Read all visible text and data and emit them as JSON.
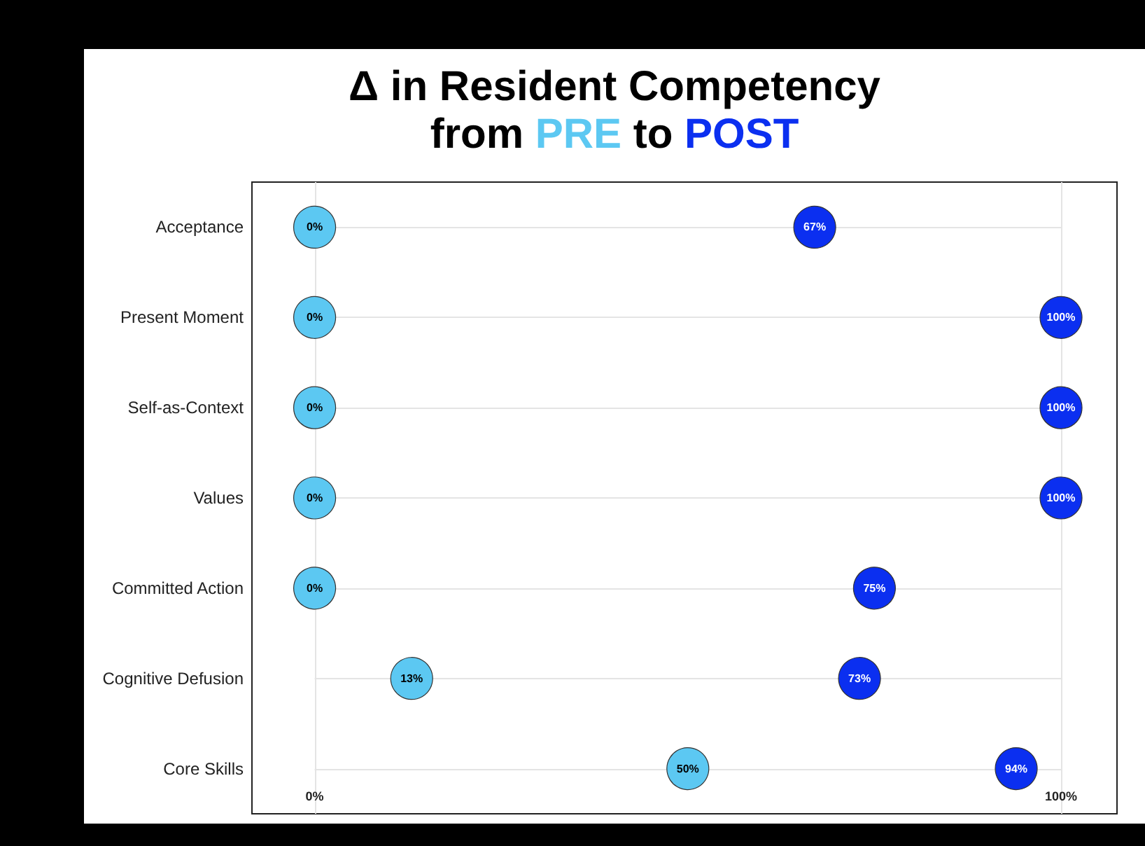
{
  "chart_data": {
    "type": "scatter",
    "orientation": "horizontal",
    "title": "Δ in Resident Competency\nfrom PRE to POST",
    "categories": [
      "Acceptance",
      "Present Moment",
      "Self-as-Context",
      "Values",
      "Committed Action",
      "Cognitive Defusion",
      "Core Skills"
    ],
    "series": [
      {
        "color": "#5cc8f2",
        "values": [
          0,
          0,
          0,
          0,
          0,
          13,
          50
        ],
        "value_labels": [
          "0%",
          "0%",
          "0%",
          "0%",
          "0%",
          "13%",
          "50%"
        ]
      },
      {
        "color": "#0b2ff0",
        "values": [
          67,
          100,
          100,
          100,
          75,
          73,
          94
        ],
        "value_labels": [
          "67%",
          "100%",
          "100%",
          "100%",
          "75%",
          "73%",
          "94%"
        ]
      }
    ],
    "xlim": [
      -8.4,
      107.5
    ],
    "xticks": [
      {
        "value": 0,
        "label": "0%"
      },
      {
        "value": 100,
        "label": "100%"
      }
    ],
    "grid": true,
    "marker": "circle"
  }
}
